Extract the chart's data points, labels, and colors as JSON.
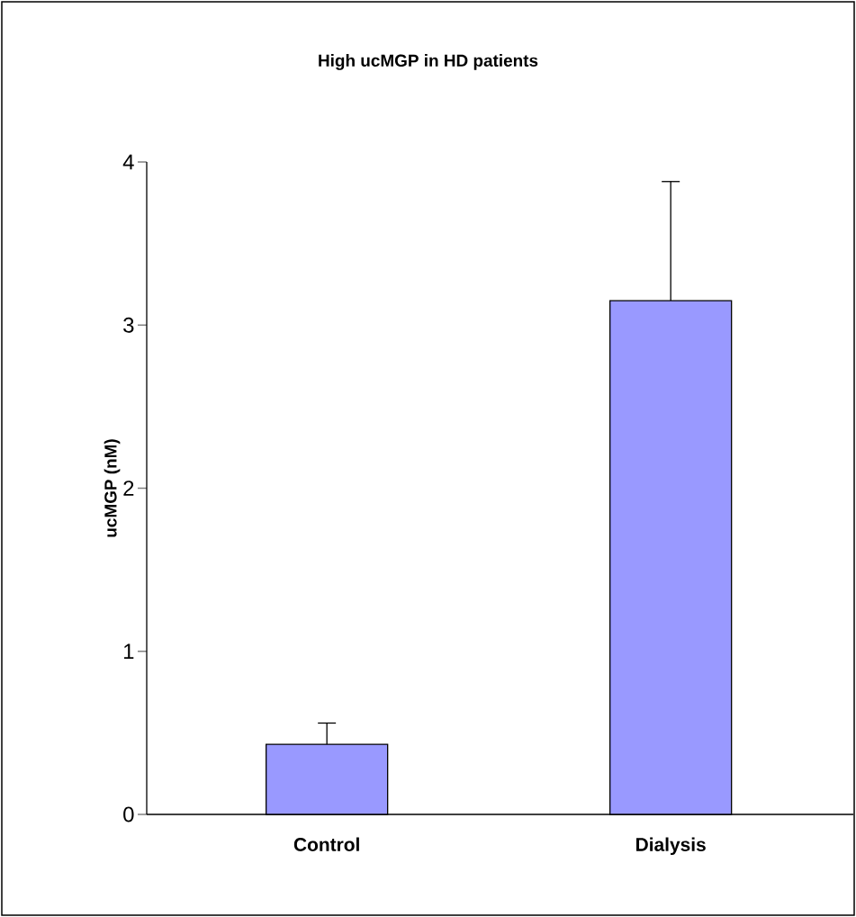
{
  "chart_data": {
    "type": "bar",
    "title": "High ucMGP in HD patients",
    "ylabel": "ucMGP (nM)",
    "categories": [
      "Control",
      "Dialysis"
    ],
    "values": [
      0.43,
      3.15
    ],
    "errors": [
      0.13,
      0.73
    ],
    "color": "#9999ff",
    "ylim": [
      0,
      4
    ],
    "yticks": [
      0,
      1,
      2,
      3,
      4
    ]
  }
}
